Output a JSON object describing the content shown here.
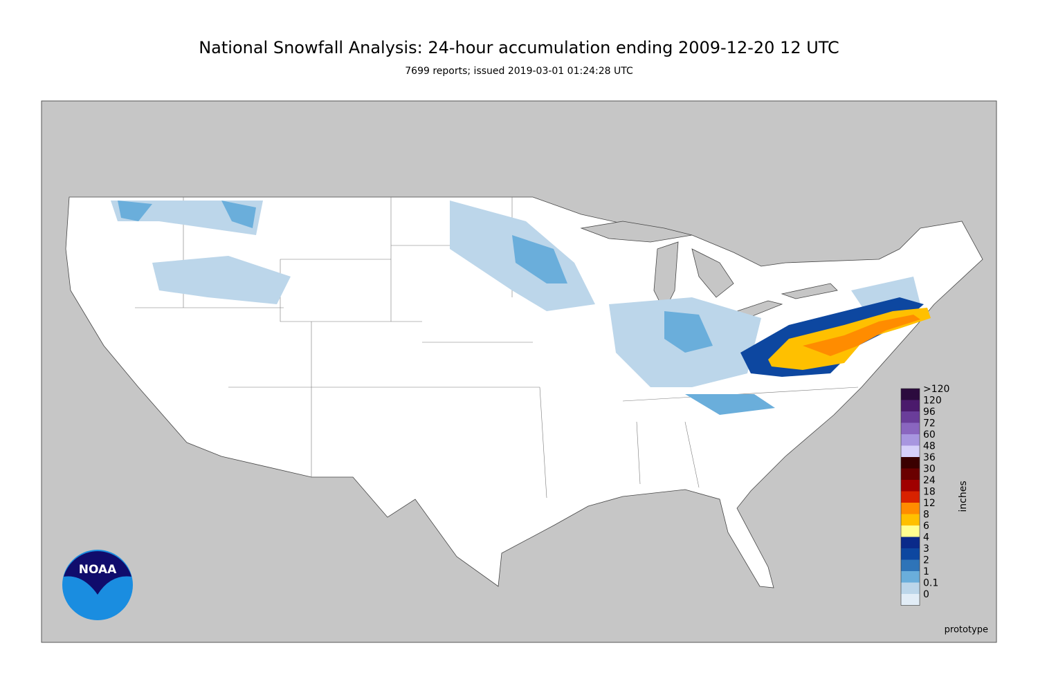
{
  "header": {
    "title": "National Snowfall Analysis: 24-hour accumulation ending 2009-12-20 12 UTC",
    "subtitle": "7699 reports; issued 2019-03-01 01:24:28 UTC"
  },
  "legend": {
    "unit": "inches",
    "items": [
      {
        "label": ">120",
        "color": "#2c0b3e"
      },
      {
        "label": "120",
        "color": "#4b1a6c"
      },
      {
        "label": "96",
        "color": "#6a3d9a"
      },
      {
        "label": "72",
        "color": "#8a66c0"
      },
      {
        "label": "60",
        "color": "#a896e0"
      },
      {
        "label": "48",
        "color": "#d6d0fa"
      },
      {
        "label": "36",
        "color": "#3a0000"
      },
      {
        "label": "30",
        "color": "#6a0000"
      },
      {
        "label": "24",
        "color": "#a00000"
      },
      {
        "label": "18",
        "color": "#d82200"
      },
      {
        "label": "12",
        "color": "#ff8c00"
      },
      {
        "label": "8",
        "color": "#ffc000"
      },
      {
        "label": "6",
        "color": "#ffff90"
      },
      {
        "label": "4",
        "color": "#0a2a8a"
      },
      {
        "label": "3",
        "color": "#0d47a0"
      },
      {
        "label": "2",
        "color": "#2f74b8"
      },
      {
        "label": "1",
        "color": "#6aaedb"
      },
      {
        "label": "0.1",
        "color": "#bcd6ea"
      },
      {
        "label": "0",
        "color": "#e2edf7"
      }
    ]
  },
  "logo": "NOAA",
  "footer": "prototype"
}
